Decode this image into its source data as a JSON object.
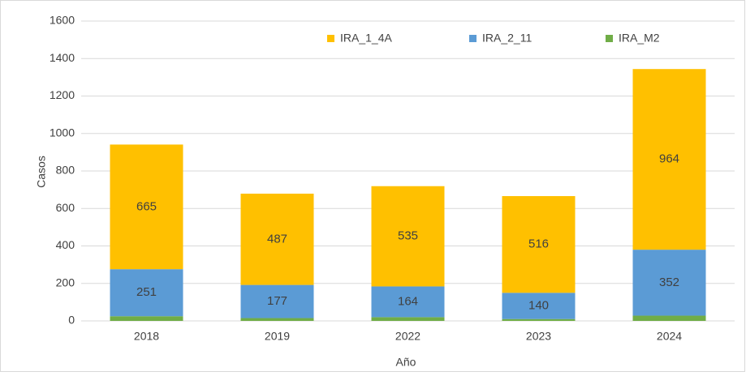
{
  "chart_data": {
    "type": "stacked_bar",
    "categories": [
      "2018",
      "2019",
      "2022",
      "2023",
      "2024"
    ],
    "series": [
      {
        "name": "IRA_M2",
        "color": "#70AD47",
        "values": [
          25,
          15,
          20,
          10,
          28
        ]
      },
      {
        "name": "IRA_2_11",
        "color": "#5B9BD5",
        "values": [
          251,
          177,
          164,
          140,
          352
        ],
        "data_labels": true
      },
      {
        "name": "IRA_1_4A",
        "color": "#FFC000",
        "values": [
          665,
          487,
          535,
          516,
          964
        ],
        "data_labels": true
      }
    ],
    "x_label": "Año",
    "y_label": "Casos",
    "ylim": [
      0,
      1600
    ],
    "yticks": [
      0,
      200,
      400,
      600,
      800,
      1000,
      1200,
      1400,
      1600
    ],
    "grid": true,
    "legend": "top"
  }
}
